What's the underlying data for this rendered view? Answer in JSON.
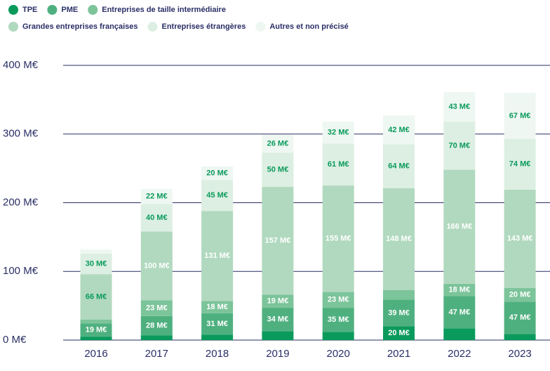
{
  "chart_data": {
    "type": "stacked_bar",
    "categories": [
      "2016",
      "2017",
      "2018",
      "2019",
      "2020",
      "2021",
      "2022",
      "2023"
    ],
    "series": [
      {
        "name": "TPE",
        "color": "#0a9a5c",
        "values": [
          5,
          7,
          8,
          13,
          12,
          20,
          17,
          9
        ],
        "value_labels": [
          null,
          null,
          null,
          null,
          null,
          "20 M€",
          null,
          null
        ]
      },
      {
        "name": "PME",
        "color": "#4fb07f",
        "values": [
          19,
          28,
          31,
          34,
          35,
          39,
          47,
          47
        ],
        "value_labels": [
          "19 M€",
          "28 M€",
          "31 M€",
          "34 M€",
          "35 M€",
          "39 M€",
          "47 M€",
          "47 M€"
        ]
      },
      {
        "name": "Entreprises de taille intermédiaire",
        "color": "#7cc49a",
        "values": [
          6,
          23,
          18,
          19,
          23,
          14,
          18,
          20
        ],
        "value_labels": [
          null,
          "23 M€",
          "18 M€",
          "19 M€",
          "23 M€",
          null,
          "18 M€",
          "20 M€"
        ]
      },
      {
        "name": "Grandes entreprises françaises",
        "color": "#b1d9bf",
        "values": [
          66,
          100,
          131,
          157,
          155,
          148,
          166,
          143
        ],
        "value_labels": [
          "66 M€",
          "100 M€",
          "131 M€",
          "157 M€",
          "155 M€",
          "148 M€",
          "166 M€",
          "143 M€"
        ]
      },
      {
        "name": "Entreprises étrangères",
        "color": "#dcefe2",
        "values": [
          30,
          40,
          45,
          50,
          61,
          64,
          70,
          74
        ],
        "value_labels": [
          "30 M€",
          "40 M€",
          "45 M€",
          "50 M€",
          "61 M€",
          "64 M€",
          "70 M€",
          "74 M€"
        ]
      },
      {
        "name": "Autres et non précisé",
        "color": "#eef7f1",
        "values": [
          6,
          22,
          20,
          26,
          32,
          42,
          43,
          67
        ],
        "value_labels": [
          null,
          "22 M€",
          "20 M€",
          "26 M€",
          "32 M€",
          "42 M€",
          "43 M€",
          "67 M€"
        ]
      }
    ],
    "ylim": [
      0,
      400
    ],
    "yticks": [
      {
        "value": 0,
        "label": "0 M€"
      },
      {
        "value": 100,
        "label": "100 M€"
      },
      {
        "value": 200,
        "label": "200 M€"
      },
      {
        "value": 300,
        "label": "300 M€"
      },
      {
        "value": 400,
        "label": "400 M€"
      }
    ],
    "grid": true
  }
}
